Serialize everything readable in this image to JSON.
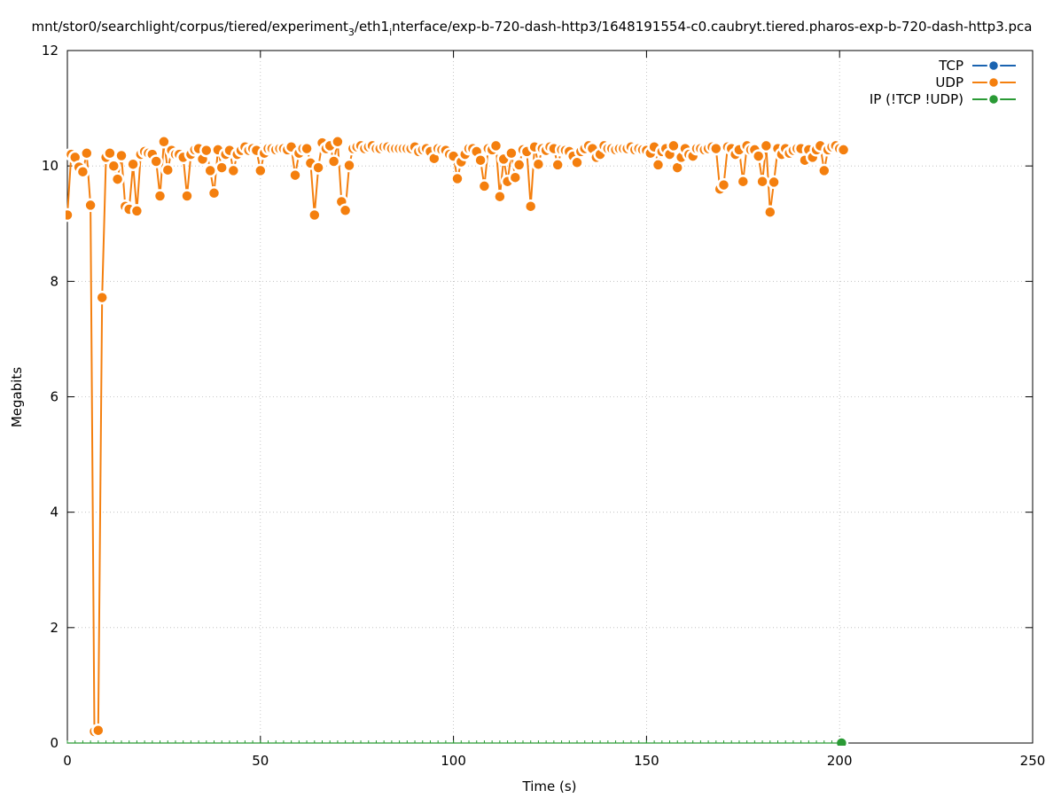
{
  "chart_data": {
    "type": "line",
    "title": "mnt/stor0/searchlight/corpus/tiered/experiment",
    "title_sub1": "3",
    "title_mid": "/eth1",
    "title_sub2": "i",
    "title_end": "nterface/exp-b-720-dash-http3/1648191554-c0.caubryt.tiered.pharos-exp-b-720-dash-http3.pca",
    "xlabel": "Time (s)",
    "ylabel": "Megabits",
    "xlim": [
      0,
      250
    ],
    "ylim": [
      0,
      12
    ],
    "x_ticks": [
      0,
      50,
      100,
      150,
      200,
      250
    ],
    "y_ticks": [
      0,
      2,
      4,
      6,
      8,
      10,
      12
    ],
    "x_tick_labels": [
      "0",
      "50",
      "100",
      "150",
      "200",
      "250"
    ],
    "y_tick_labels": [
      "0",
      "2",
      "4",
      "6",
      "8",
      "10",
      "12"
    ],
    "grid": true,
    "legend_position": "top-right",
    "series": [
      {
        "name": "TCP",
        "color": "#1a63b0",
        "x": [],
        "values": []
      },
      {
        "name": "UDP",
        "color": "#f47f0e",
        "x": [
          0,
          1,
          2,
          3,
          4,
          5,
          6,
          7,
          8,
          9,
          10,
          11,
          12,
          13,
          14,
          15,
          16,
          17,
          18,
          19,
          20,
          21,
          22,
          23,
          24,
          25,
          26,
          27,
          28,
          29,
          30,
          31,
          32,
          33,
          34,
          35,
          36,
          37,
          38,
          39,
          40,
          41,
          42,
          43,
          44,
          45,
          46,
          47,
          48,
          49,
          50,
          51,
          52,
          53,
          54,
          55,
          56,
          57,
          58,
          59,
          60,
          61,
          62,
          63,
          64,
          65,
          66,
          67,
          68,
          69,
          70,
          71,
          72,
          73,
          74,
          75,
          76,
          77,
          78,
          79,
          80,
          81,
          82,
          83,
          84,
          85,
          86,
          87,
          88,
          89,
          90,
          91,
          92,
          93,
          94,
          95,
          96,
          97,
          98,
          99,
          100,
          101,
          102,
          103,
          104,
          105,
          106,
          107,
          108,
          109,
          110,
          111,
          112,
          113,
          114,
          115,
          116,
          117,
          118,
          119,
          120,
          121,
          122,
          123,
          124,
          125,
          126,
          127,
          128,
          129,
          130,
          131,
          132,
          133,
          134,
          135,
          136,
          137,
          138,
          139,
          140,
          141,
          142,
          143,
          144,
          145,
          146,
          147,
          148,
          149,
          150,
          151,
          152,
          153,
          154,
          155,
          156,
          157,
          158,
          159,
          160,
          161,
          162,
          163,
          164,
          165,
          166,
          167,
          168,
          169,
          170,
          171,
          172,
          173,
          174,
          175,
          176,
          177,
          178,
          179,
          180,
          181,
          182,
          183,
          184,
          185,
          186,
          187,
          188,
          189,
          190,
          191,
          192,
          193,
          194,
          195,
          196,
          197,
          198,
          199,
          200,
          201
        ],
        "values": [
          9.15,
          10.2,
          10.15,
          9.98,
          9.9,
          10.22,
          9.32,
          0.2,
          0.22,
          7.72,
          10.15,
          10.22,
          10.0,
          9.77,
          10.18,
          9.3,
          9.25,
          10.03,
          9.22,
          10.2,
          10.25,
          10.22,
          10.2,
          10.08,
          9.48,
          10.42,
          9.93,
          10.27,
          10.2,
          10.2,
          10.15,
          9.48,
          10.2,
          10.28,
          10.3,
          10.12,
          10.27,
          9.92,
          9.53,
          10.28,
          9.97,
          10.2,
          10.27,
          9.92,
          10.2,
          10.27,
          10.33,
          10.27,
          10.3,
          10.27,
          9.92,
          10.22,
          10.3,
          10.3,
          10.28,
          10.3,
          10.3,
          10.28,
          10.33,
          9.84,
          10.22,
          10.3,
          10.3,
          10.05,
          9.15,
          9.97,
          10.4,
          10.3,
          10.35,
          10.08,
          10.42,
          9.38,
          9.23,
          10.01,
          10.3,
          10.33,
          10.35,
          10.3,
          10.33,
          10.35,
          10.3,
          10.3,
          10.33,
          10.33,
          10.3,
          10.3,
          10.3,
          10.3,
          10.3,
          10.3,
          10.33,
          10.25,
          10.28,
          10.3,
          10.25,
          10.13,
          10.3,
          10.28,
          10.27,
          10.2,
          10.17,
          9.78,
          10.07,
          10.2,
          10.3,
          10.3,
          10.25,
          10.1,
          9.65,
          10.3,
          10.28,
          10.35,
          9.47,
          10.12,
          9.73,
          10.22,
          9.8,
          10.02,
          10.28,
          10.25,
          9.3,
          10.33,
          10.03,
          10.3,
          10.27,
          10.33,
          10.3,
          10.02,
          10.28,
          10.27,
          10.25,
          10.17,
          10.06,
          10.25,
          10.3,
          10.35,
          10.3,
          10.15,
          10.2,
          10.35,
          10.3,
          10.3,
          10.28,
          10.3,
          10.3,
          10.3,
          10.33,
          10.28,
          10.3,
          10.28,
          10.27,
          10.22,
          10.33,
          10.02,
          10.25,
          10.3,
          10.2,
          10.35,
          9.97,
          10.15,
          10.3,
          10.2,
          10.17,
          10.3,
          10.3,
          10.28,
          10.3,
          10.33,
          10.3,
          9.6,
          9.67,
          10.33,
          10.3,
          10.2,
          10.28,
          9.73,
          10.35,
          10.28,
          10.28,
          10.17,
          9.73,
          10.35,
          9.2,
          9.72,
          10.3,
          10.2,
          10.3,
          10.22,
          10.27,
          10.3,
          10.3,
          10.1,
          10.28,
          10.15,
          10.28,
          10.35,
          9.92,
          10.28,
          10.33,
          10.35,
          10.3,
          10.28
        ]
      },
      {
        "name": "IP (!TCP  !UDP)",
        "color": "#2a9a35",
        "x": [
          200.5
        ],
        "values": [
          0
        ]
      }
    ]
  }
}
